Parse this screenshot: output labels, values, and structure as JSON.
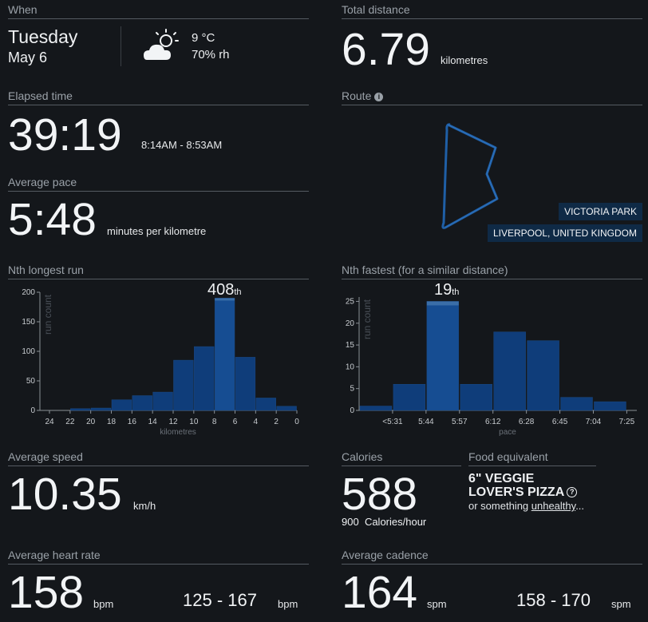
{
  "when": {
    "header": "When",
    "day": "Tuesday",
    "date": "May 6",
    "temperature": "9 °C",
    "humidity": "70% rh",
    "weather_icon": "partly-cloudy-icon"
  },
  "total_distance": {
    "header": "Total distance",
    "value": "6.79",
    "unit": "kilometres"
  },
  "elapsed_time": {
    "header": "Elapsed time",
    "value": "39:19",
    "range": "8:14AM - 8:53AM"
  },
  "route": {
    "header": "Route",
    "info_icon": "info-icon",
    "location_1": "VICTORIA PARK",
    "location_2": "LIVERPOOL, UNITED KINGDOM",
    "line_color": "#1f5fa6"
  },
  "average_pace": {
    "header": "Average pace",
    "value": "5:48",
    "unit": "minutes per kilometre"
  },
  "nth_longest": {
    "header": "Nth longest run",
    "rank_number": "408",
    "rank_suffix": "th"
  },
  "nth_fastest": {
    "header": "Nth fastest (for a similar distance)",
    "rank_number": "19",
    "rank_suffix": "th"
  },
  "average_speed": {
    "header": "Average speed",
    "value": "10.35",
    "unit": "km/h"
  },
  "calories": {
    "header": "Calories",
    "value": "588",
    "rate_value": "900",
    "rate_unit": "Calories/hour"
  },
  "food": {
    "header": "Food equivalent",
    "line1": "6\" VEGGIE",
    "line2": "LOVER'S PIZZA",
    "help_icon": "question-icon",
    "sub_prefix": "or something ",
    "sub_link": "unhealthy",
    "sub_suffix": "..."
  },
  "heart_rate": {
    "header": "Average heart rate",
    "value": "158",
    "unit": "bpm",
    "range": "125 - 167",
    "range_unit": "bpm"
  },
  "cadence": {
    "header": "Average cadence",
    "value": "164",
    "unit": "spm",
    "range": "158 - 170",
    "range_unit": "spm"
  },
  "colors": {
    "bar": "#0f3d7a",
    "bar_highlight": "#164d92",
    "marker": "#3a6ea8",
    "accent_text": "#f2f4f6"
  },
  "chart_data": [
    {
      "type": "bar",
      "ylabel": "run count",
      "xlabel": "kilometres",
      "x_ticks": [
        "24",
        "22",
        "20",
        "18",
        "16",
        "14",
        "12",
        "10",
        "8",
        "6",
        "4",
        "2",
        "0"
      ],
      "y_ticks": [
        "0",
        "50",
        "100",
        "150",
        "200"
      ],
      "ylim": [
        0,
        200
      ],
      "x_reversed": true,
      "bins": [
        [
          22,
          20
        ],
        [
          20,
          18
        ],
        [
          18,
          16
        ],
        [
          16,
          14
        ],
        [
          14,
          12
        ],
        [
          12,
          10
        ],
        [
          10,
          8
        ],
        [
          8,
          6
        ],
        [
          6,
          4
        ],
        [
          4,
          2
        ],
        [
          2,
          0
        ]
      ],
      "values": [
        3,
        4,
        18,
        25,
        31,
        85,
        108,
        190,
        90,
        21,
        7
      ],
      "highlight_index": 7,
      "highlight_value": 6.79
    },
    {
      "type": "bar",
      "ylabel": "run count",
      "xlabel": "pace",
      "x_ticks": [
        "<5:31",
        "5:44",
        "5:57",
        "6:12",
        "6:28",
        "6:45",
        "7:04",
        "7:25"
      ],
      "y_ticks": [
        "0",
        "5",
        "10",
        "15",
        "20",
        "25"
      ],
      "ylim": [
        0,
        26
      ],
      "values": [
        1,
        6,
        25,
        6,
        18,
        16,
        3,
        2
      ],
      "highlight_index": 2
    }
  ]
}
